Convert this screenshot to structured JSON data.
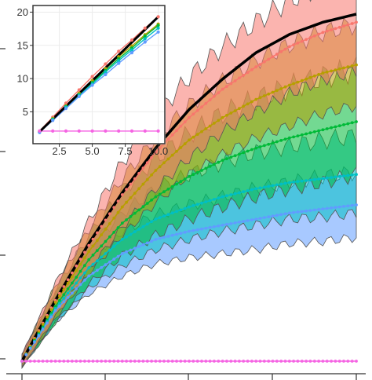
{
  "chart_data": [
    {
      "type": "line",
      "x_range": [
        0,
        80
      ],
      "y_range": [
        0,
        17.1
      ],
      "series": [
        {
          "color": "#f8766d",
          "x": [
            0,
            8,
            16,
            24,
            32,
            40,
            48,
            56,
            64,
            72,
            80
          ],
          "y": [
            0,
            3.0,
            5.7,
            8.2,
            10.3,
            12.0,
            13.4,
            14.5,
            15.5,
            16.2,
            16.7
          ],
          "band": [
            0.3,
            0.8,
            1.2,
            1.6,
            1.8,
            2.0,
            2.1,
            2.2,
            2.3,
            2.3,
            2.4
          ]
        },
        {
          "color": "#b79f00",
          "x": [
            0,
            8,
            16,
            24,
            32,
            40,
            48,
            56,
            64,
            72,
            80
          ],
          "y": [
            0,
            2.9,
            5.4,
            7.6,
            9.4,
            10.9,
            12.0,
            12.9,
            13.6,
            14.2,
            14.6
          ],
          "band": [
            0.3,
            0.8,
            1.1,
            1.4,
            1.6,
            1.7,
            1.8,
            1.9,
            2.0,
            2.0,
            2.0
          ]
        },
        {
          "color": "#00ba38",
          "x": [
            0,
            8,
            16,
            24,
            32,
            40,
            48,
            56,
            64,
            72,
            80
          ],
          "y": [
            0,
            2.7,
            5.0,
            6.8,
            8.1,
            9.1,
            9.9,
            10.5,
            11.0,
            11.4,
            11.8
          ],
          "band": [
            0.3,
            0.8,
            1.2,
            1.6,
            1.9,
            2.1,
            2.3,
            2.4,
            2.5,
            2.6,
            2.6
          ]
        },
        {
          "color": "#00bfc4",
          "x": [
            0,
            8,
            16,
            24,
            32,
            40,
            48,
            56,
            64,
            72,
            80
          ],
          "y": [
            0,
            2.6,
            4.6,
            6.0,
            7.0,
            7.6,
            8.1,
            8.5,
            8.8,
            9.0,
            9.2
          ],
          "band": [
            0.3,
            0.7,
            1.0,
            1.3,
            1.5,
            1.6,
            1.7,
            1.8,
            1.8,
            1.9,
            1.9
          ]
        },
        {
          "color": "#619cff",
          "x": [
            0,
            8,
            16,
            24,
            32,
            40,
            48,
            56,
            64,
            72,
            80
          ],
          "y": [
            0,
            2.5,
            4.2,
            5.3,
            6.0,
            6.4,
            6.7,
            7.0,
            7.3,
            7.5,
            7.7
          ],
          "band": [
            0.2,
            0.6,
            0.9,
            1.1,
            1.2,
            1.3,
            1.4,
            1.5,
            1.5,
            1.6,
            1.6
          ]
        },
        {
          "color": "#f564e3",
          "x": [
            0,
            8,
            16,
            24,
            32,
            40,
            48,
            56,
            64,
            72,
            80
          ],
          "y": [
            0,
            0,
            0,
            0,
            0,
            0,
            0,
            0,
            0,
            0,
            0
          ],
          "band": [
            0,
            0,
            0,
            0,
            0,
            0,
            0,
            0,
            0,
            0,
            0
          ]
        },
        {
          "color": "#000000",
          "x": [
            0,
            8,
            16,
            24,
            32,
            40,
            48,
            56,
            64,
            72,
            80
          ],
          "y": [
            0,
            3.0,
            5.8,
            8.3,
            10.5,
            12.4,
            13.9,
            15.2,
            16.1,
            16.7,
            17.1
          ]
        }
      ]
    },
    {
      "type": "scatter",
      "x_range": [
        0.5,
        10.5
      ],
      "y_range": [
        0.2,
        21
      ],
      "x_ticks": [
        2.5,
        5.0,
        7.5,
        10.0
      ],
      "x_tick_labels": [
        "2.5",
        "5.0",
        "7.5",
        "10.0"
      ],
      "y_ticks": [
        5,
        10,
        15,
        20
      ],
      "y_tick_labels": [
        "5",
        "10",
        "15",
        "20"
      ],
      "series": [
        {
          "color": "#f8766d",
          "x": [
            1,
            2,
            3,
            4,
            5,
            6,
            7,
            8,
            9,
            10
          ],
          "y": [
            2.1,
            4.2,
            6.3,
            8.3,
            10.3,
            12.2,
            14.1,
            15.8,
            17.6,
            19.3
          ]
        },
        {
          "color": "#b79f00",
          "x": [
            1,
            2,
            3,
            4,
            5,
            6,
            7,
            8,
            9,
            10
          ],
          "y": [
            2.0,
            4.0,
            5.9,
            7.8,
            9.7,
            11.5,
            13.3,
            14.9,
            16.6,
            18.2
          ]
        },
        {
          "color": "#00ba38",
          "x": [
            1,
            2,
            3,
            4,
            5,
            6,
            7,
            8,
            9,
            10
          ],
          "y": [
            2.0,
            3.9,
            5.8,
            7.6,
            9.4,
            11.2,
            13.0,
            14.6,
            16.4,
            18.0
          ]
        },
        {
          "color": "#00bfc4",
          "x": [
            1,
            2,
            3,
            4,
            5,
            6,
            7,
            8,
            9,
            10
          ],
          "y": [
            1.9,
            3.8,
            5.7,
            7.5,
            9.2,
            11.0,
            12.7,
            14.3,
            16.0,
            17.6
          ]
        },
        {
          "color": "#619cff",
          "x": [
            1,
            2,
            3,
            4,
            5,
            6,
            7,
            8,
            9,
            10
          ],
          "y": [
            1.9,
            3.7,
            5.5,
            7.3,
            9.0,
            10.6,
            12.3,
            13.9,
            15.5,
            17.0
          ]
        },
        {
          "color": "#f564e3",
          "x": [
            1,
            2,
            3,
            4,
            5,
            6,
            7,
            8,
            9,
            10
          ],
          "y": [
            2.1,
            2.1,
            2.1,
            2.1,
            2.1,
            2.1,
            2.1,
            2.1,
            2.1,
            2.1
          ]
        },
        {
          "color": "#000000",
          "x": [
            1,
            10
          ],
          "y": [
            2.0,
            19.3
          ]
        }
      ]
    }
  ]
}
